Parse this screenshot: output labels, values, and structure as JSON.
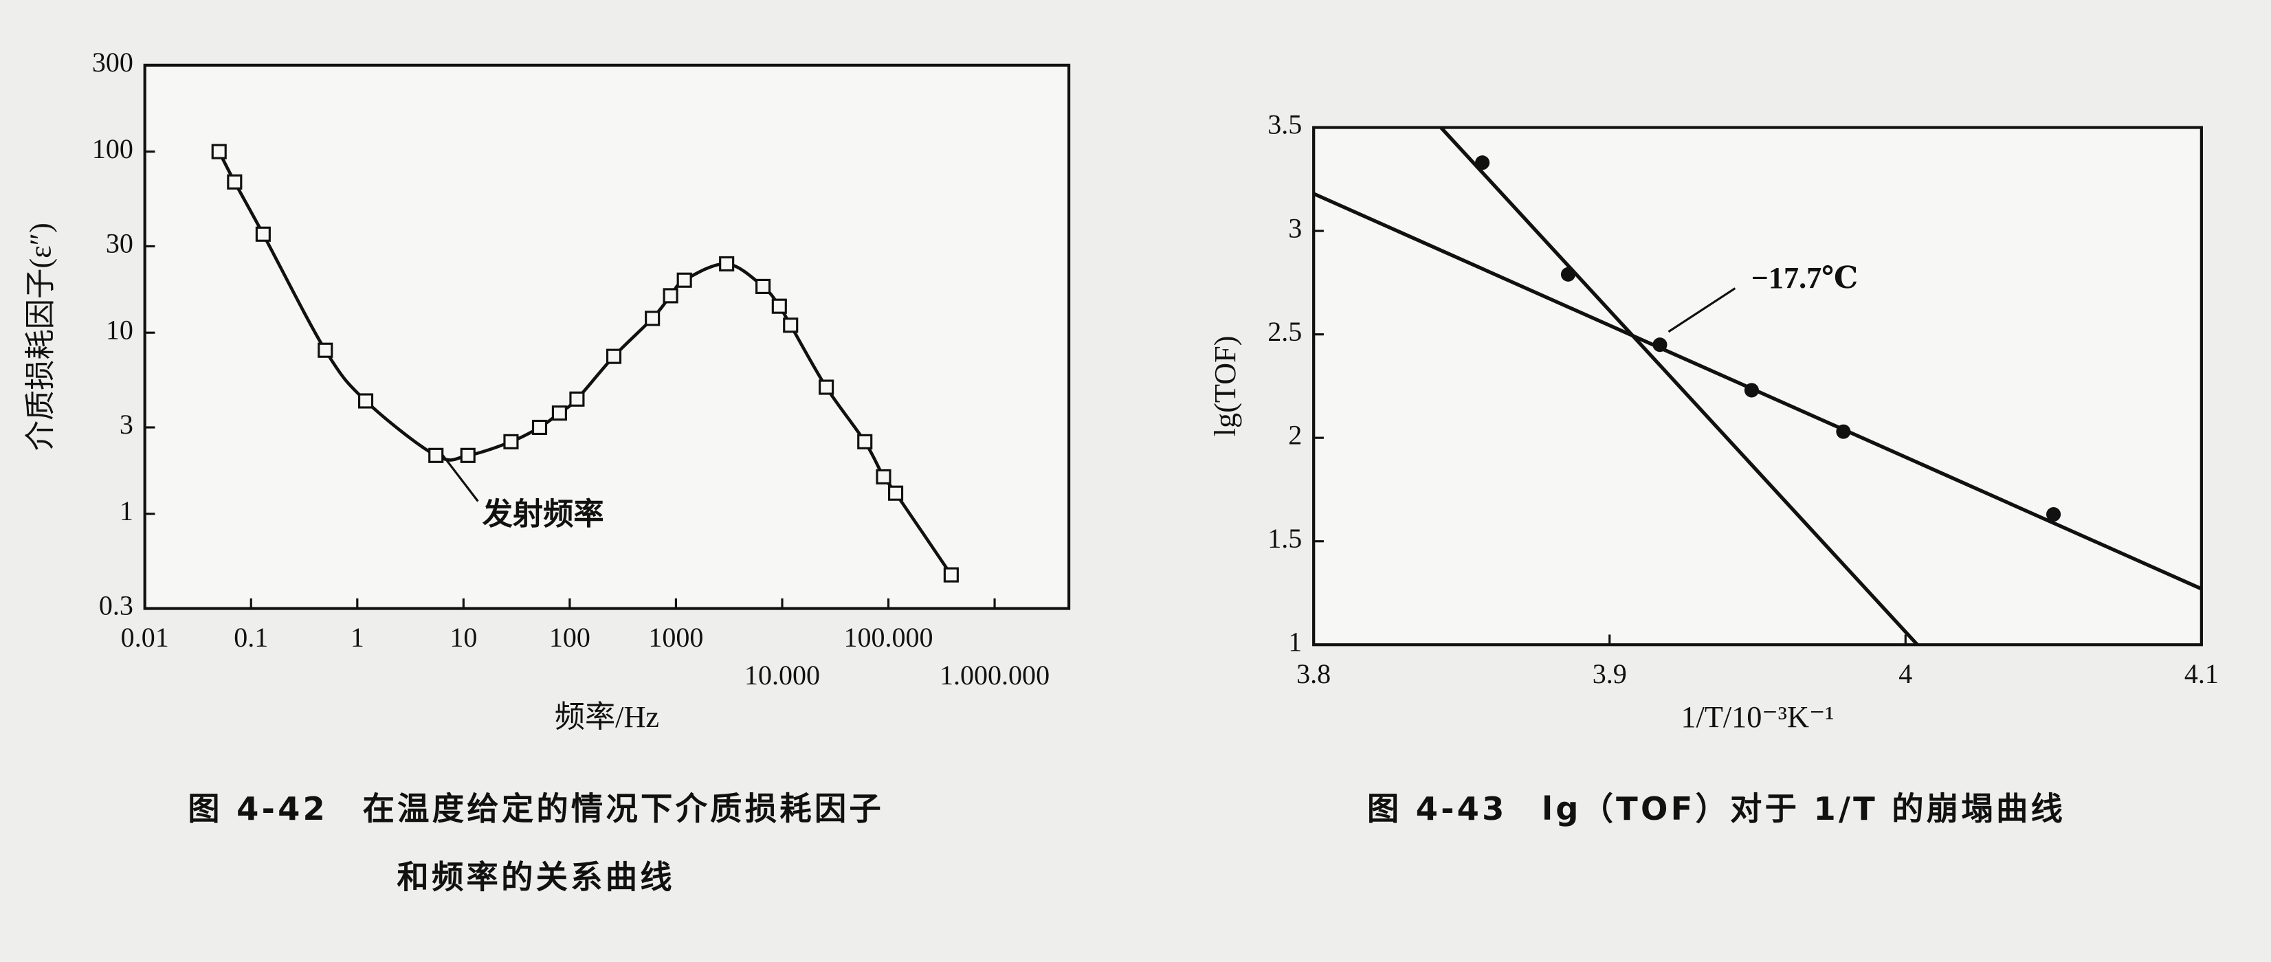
{
  "chart_data": [
    {
      "type": "line",
      "y_label": "介质损耗因子(ε″)",
      "x_label": "频率/Hz",
      "caption": [
        "图 4-42　在温度给定的情况下介质损耗因子",
        "和频率的关系曲线"
      ],
      "annotation": "发射频率",
      "x_scale": "log",
      "y_scale": "log",
      "marker": "square",
      "color": "#111111",
      "x": [
        0.05,
        0.07,
        0.13,
        0.5,
        1.2,
        5.5,
        11,
        28,
        52,
        80,
        117,
        260,
        600,
        890,
        1200,
        3000,
        6600,
        9400,
        12000,
        26000,
        60000,
        90000,
        117000,
        390000
      ],
      "values": [
        100,
        68,
        35,
        8,
        4.2,
        2.1,
        2.1,
        2.5,
        3.0,
        3.6,
        4.3,
        7.4,
        12,
        16,
        19.5,
        24,
        18,
        14,
        11,
        5,
        2.5,
        1.6,
        1.3,
        0.46
      ],
      "xlim": [
        0.01,
        5000000
      ],
      "ylim": [
        0.3,
        300
      ],
      "xticks": [
        0.01,
        0.1,
        1,
        10,
        100,
        1000,
        {
          "value": 10000,
          "label": "10.000"
        },
        {
          "value": 100000,
          "label": "100.000"
        },
        {
          "value": 1000000,
          "label": "1.000.000"
        }
      ],
      "yticks": [
        0.3,
        1,
        3,
        10,
        30,
        100,
        300
      ]
    },
    {
      "type": "scatter",
      "y_label": "lg(TOF)",
      "x_label": "1/T/10⁻³K⁻¹",
      "caption": [
        "图 4-43　lg（TOF）对于 1/T 的崩塌曲线"
      ],
      "annotation": "−17.7℃",
      "marker": "circle",
      "color": "#111111",
      "x": [
        3.857,
        3.886,
        3.917,
        3.948,
        3.979,
        4.05
      ],
      "values": [
        3.33,
        2.79,
        2.45,
        2.23,
        2.03,
        1.63
      ],
      "fit_lines": [
        {
          "x": [
            3.8,
            4.1
          ],
          "y": [
            3.18,
            1.27
          ]
        },
        {
          "x": [
            3.843,
            4.004
          ],
          "y": [
            3.5,
            1
          ]
        }
      ],
      "xlim": [
        3.8,
        4.1
      ],
      "ylim": [
        1,
        3.5
      ],
      "xticks": [
        3.8,
        3.9,
        4,
        4.1
      ],
      "yticks": [
        1,
        1.5,
        2,
        2.5,
        3,
        3.5
      ]
    }
  ]
}
